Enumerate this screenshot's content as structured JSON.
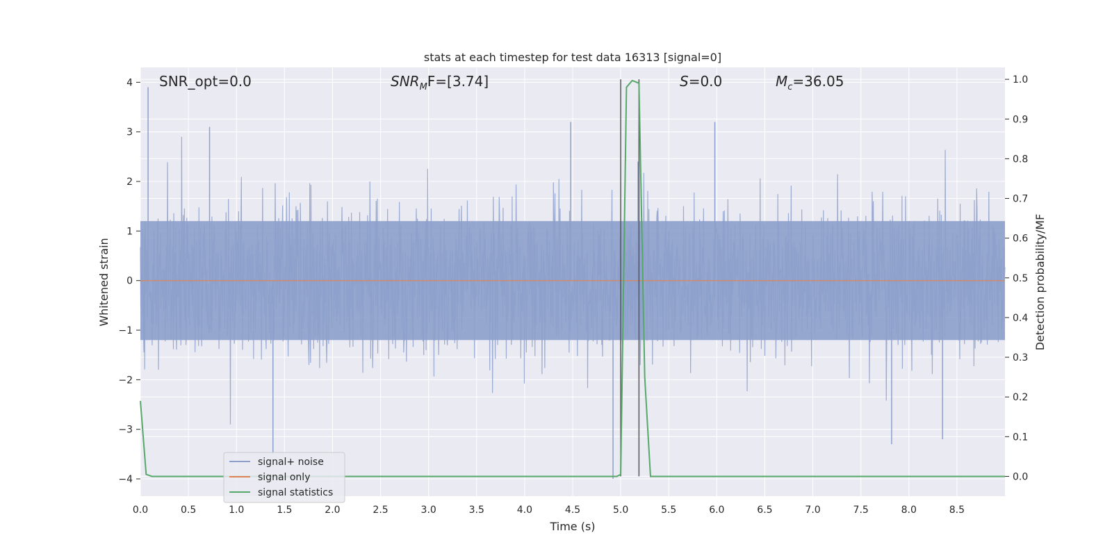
{
  "chart_data": {
    "type": "line",
    "title": "stats at each timestep for test data 16313 [signal=0]",
    "xlabel": "Time (s)",
    "ylabel_left": "Whitened strain",
    "ylabel_right": "Detection probability/MF",
    "xlim": [
      0.0,
      9.0
    ],
    "ylim_left": [
      -4.35,
      4.3
    ],
    "ylim_right": [
      -0.05,
      1.03
    ],
    "x_ticks": [
      "0.0",
      "0.5",
      "1.0",
      "1.5",
      "2.0",
      "2.5",
      "3.0",
      "3.5",
      "4.0",
      "4.5",
      "5.0",
      "5.5",
      "6.0",
      "6.5",
      "7.0",
      "7.5",
      "8.0",
      "8.5"
    ],
    "y_ticks_left": [
      "4",
      "3",
      "2",
      "1",
      "0",
      "−1",
      "−2",
      "−3",
      "−4"
    ],
    "y_ticks_right": [
      "1.0",
      "0.9",
      "0.8",
      "0.7",
      "0.6",
      "0.5",
      "0.4",
      "0.3",
      "0.2",
      "0.1",
      "0.0"
    ],
    "grid": true,
    "legend_position": "lower-left",
    "annotations": {
      "snr_opt": "SNR_opt=0.0",
      "snr_mf_base": "SNR",
      "snr_mf_sub": "M",
      "snr_mf_tail": "F=[3.74]",
      "s_label": "S",
      "s_tail": "=0.0",
      "mc_base": "M",
      "mc_sub": "c",
      "mc_tail": "=36.05"
    },
    "vertical_markers_x": [
      5.0,
      5.19
    ],
    "series": [
      {
        "name": "signal+ noise",
        "axis": "left",
        "color": "#8da0cb",
        "description_range": [
          -4.0,
          3.9
        ],
        "noise_envelope_approx": 1.6,
        "peak_points": [
          [
            0.08,
            3.9
          ],
          [
            0.72,
            3.1
          ],
          [
            1.38,
            -3.5
          ],
          [
            4.48,
            3.2
          ],
          [
            4.92,
            -4.0
          ],
          [
            5.18,
            2.4
          ],
          [
            5.98,
            3.2
          ],
          [
            7.82,
            -3.3
          ],
          [
            8.35,
            -3.2
          ]
        ]
      },
      {
        "name": "signal only",
        "axis": "left",
        "color": "#dd8452",
        "x": [
          0.0,
          9.0
        ],
        "values": [
          0.0,
          0.0
        ]
      },
      {
        "name": "signal statistics",
        "axis": "right",
        "color": "#55a868",
        "x": [
          0.0,
          0.06,
          0.12,
          0.5,
          1.0,
          1.5,
          2.0,
          2.5,
          3.0,
          3.5,
          4.0,
          4.5,
          4.9,
          4.96,
          5.0,
          5.06,
          5.12,
          5.19,
          5.25,
          5.31,
          5.4,
          6.0,
          7.0,
          8.0,
          9.0
        ],
        "values": [
          0.19,
          0.005,
          0.0,
          0.0,
          0.0,
          0.0,
          0.0,
          0.0,
          0.0,
          0.0,
          0.0,
          0.0,
          0.0,
          0.0,
          0.005,
          0.98,
          0.997,
          0.99,
          0.25,
          0.0,
          0.0,
          0.0,
          0.0,
          0.0,
          0.0
        ]
      }
    ]
  },
  "legend": {
    "items": [
      {
        "label": "signal+ noise",
        "color": "#8da0cb"
      },
      {
        "label": "signal only",
        "color": "#dd8452"
      },
      {
        "label": "signal statistics",
        "color": "#55a868"
      }
    ]
  },
  "colors": {
    "plot_background": "#eaeaf2",
    "grid": "#ffffff",
    "marker_line": "#555555"
  }
}
